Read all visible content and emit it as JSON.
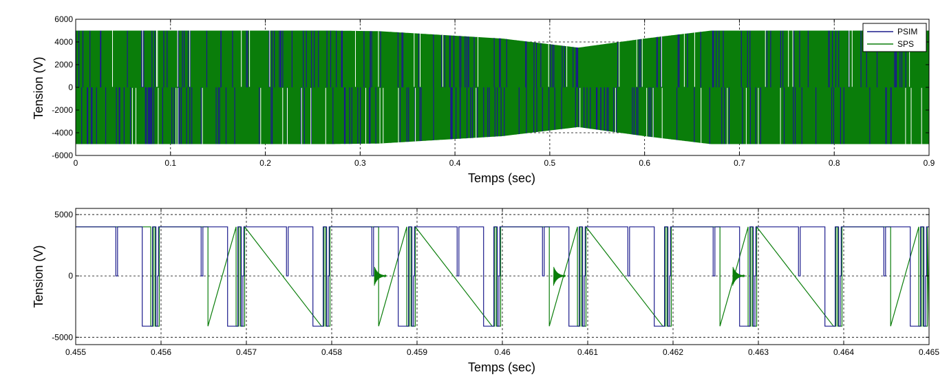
{
  "colors": {
    "psim": "#1a1a8c",
    "sps": "#0a7d0a",
    "grid": "#000000",
    "axes": "#000000",
    "background": "#ffffff"
  },
  "chart_data": [
    {
      "type": "line",
      "xlabel": "Temps (sec)",
      "ylabel": "Tension (V)",
      "xlim": [
        0,
        0.9
      ],
      "ylim": [
        -6000,
        6000
      ],
      "xticks": [
        0,
        0.1,
        0.2,
        0.3,
        0.4,
        0.5,
        0.6,
        0.7,
        0.8,
        0.9
      ],
      "xtick_labels": [
        "0",
        "0.1",
        "0.2",
        "0.3",
        "0.4",
        "0.5",
        "0.6",
        "0.7",
        "0.8",
        "0.9"
      ],
      "yticks": [
        -6000,
        -4000,
        -2000,
        0,
        2000,
        4000,
        6000
      ],
      "ytick_labels": [
        "-6000",
        "-4000",
        "-2000",
        "0",
        "2000",
        "4000",
        "6000"
      ],
      "grid": true,
      "legend": "top-right",
      "series": [
        {
          "name": "PSIM",
          "description_envelope": {
            "x": [
              0,
              0.27,
              0.32,
              0.45,
              0.53,
              0.6,
              0.67,
              0.9
            ],
            "y_upper": [
              5000,
              5000,
              4950,
              4300,
              3500,
              4300,
              5000,
              5000
            ],
            "y_lower": [
              -5000,
              -5000,
              -4950,
              -4300,
              -3500,
              -4300,
              -5000,
              -5000
            ]
          }
        },
        {
          "name": "SPS",
          "description_envelope": {
            "x": [
              0,
              0.27,
              0.32,
              0.45,
              0.53,
              0.6,
              0.67,
              0.9
            ],
            "y_upper": [
              5000,
              5000,
              4950,
              4300,
              3500,
              4300,
              5000,
              5000
            ],
            "y_lower": [
              -5000,
              -5000,
              -4950,
              -4300,
              -3500,
              -4300,
              -5000,
              -5000
            ]
          }
        }
      ]
    },
    {
      "type": "line",
      "xlabel": "Temps (sec)",
      "ylabel": "Tension (V)",
      "xlim": [
        0.455,
        0.465
      ],
      "ylim": [
        -5600,
        5500
      ],
      "xticks": [
        0.455,
        0.456,
        0.457,
        0.458,
        0.459,
        0.46,
        0.461,
        0.462,
        0.463,
        0.464,
        0.465
      ],
      "xtick_labels": [
        "0.455",
        "0.456",
        "0.457",
        "0.458",
        "0.459",
        "0.46",
        "0.461",
        "0.462",
        "0.463",
        "0.464",
        "0.465"
      ],
      "yticks": [
        -5000,
        0,
        5000
      ],
      "ytick_labels": [
        "-5000",
        "0",
        "5000"
      ],
      "grid": true,
      "series": [
        {
          "name": "PSIM",
          "x": [
            0.455,
            0.4555,
            0.4555,
            0.45552,
            0.45552,
            0.45575,
            0.45575,
            0.45588,
            0.45588,
            0.45592,
            0.45592,
            0.45596,
            0.45596,
            0.4565,
            0.4565,
            0.45652,
            0.45652,
            0.4579,
            0.4579,
            0.458,
            0.458,
            0.45805,
            0.45805,
            0.4575,
            0.4575,
            0.4575,
            0.4575,
            0.4575,
            0.4575,
            0.45905,
            0.45905,
            0.4585,
            0.4585,
            0.46,
            0.46,
            0.4605,
            0.4605,
            0.46052,
            0.46052,
            0.461,
            0.461,
            0.4615,
            0.4615,
            0.46152,
            0.46152,
            0.462,
            0.462,
            0.4625,
            0.4625,
            0.46252,
            0.46252,
            0.463,
            0.463,
            0.4635,
            0.4635,
            0.46352,
            0.46352,
            0.464,
            0.464,
            0.4645,
            0.4645,
            0.46452,
            0.46452,
            0.465
          ],
          "y": [
            4000,
            4000,
            0,
            0,
            4000,
            4000,
            -4000,
            -4000,
            4000,
            4000,
            -4000,
            -4000,
            4000,
            4000,
            0,
            0,
            4000,
            4000,
            -4000,
            -4000,
            4000,
            4000,
            4000,
            4000,
            4000,
            4000,
            4000,
            4000,
            4000,
            4000,
            4000,
            4000,
            4000,
            4000,
            4000,
            4000,
            0,
            0,
            4000,
            4000,
            4000,
            4000,
            0,
            0,
            4000,
            4000,
            4000,
            4000,
            0,
            0,
            4000,
            4000,
            4000,
            4000,
            0,
            0,
            4000,
            4000,
            4000,
            4000,
            0,
            0,
            4000,
            4000
          ]
        },
        {
          "name": "SPS",
          "x": [
            0.455,
            0.465
          ],
          "y": [
            4000,
            4000
          ]
        }
      ]
    }
  ]
}
